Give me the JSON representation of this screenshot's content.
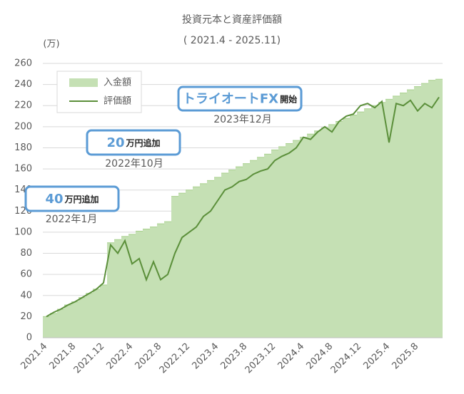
{
  "chart_data": {
    "type": "area-line",
    "title": "投資元本と資産評価額",
    "subtitle": "( 2021.4 - 2025.11)",
    "y_unit": "(万)",
    "categories": [
      "2021.4",
      null,
      null,
      null,
      "2021.8",
      null,
      null,
      null,
      "2021.12",
      null,
      null,
      null,
      "2022.4",
      null,
      null,
      null,
      "2022.8",
      null,
      null,
      null,
      "2022.12",
      null,
      null,
      null,
      "2023.4",
      null,
      null,
      null,
      "2023.8",
      null,
      null,
      null,
      "2023.12",
      null,
      null,
      null,
      "2024.4",
      null,
      null,
      null,
      "2024.8",
      null,
      null,
      null,
      "2024.12",
      null,
      null,
      null,
      "2025.4",
      null,
      null,
      null,
      "2025.8",
      null,
      null,
      null
    ],
    "series": [
      {
        "name": "入金額",
        "color": "#c5e0b4",
        "values": [
          20,
          23,
          27,
          31,
          34,
          38,
          42,
          46,
          50,
          90,
          93,
          96,
          98,
          101,
          103,
          105,
          108,
          110,
          134,
          137,
          140,
          143,
          146,
          149,
          152,
          156,
          159,
          162,
          165,
          168,
          171,
          174,
          178,
          181,
          184,
          187,
          190,
          193,
          196,
          199,
          202,
          205,
          208,
          211,
          214,
          217,
          220,
          223,
          226,
          229,
          232,
          235,
          238,
          241,
          244,
          245
        ]
      },
      {
        "name": "評価額",
        "color": "#5b8f3a",
        "values": [
          20,
          24,
          27,
          31,
          34,
          38,
          42,
          46,
          52,
          88,
          80,
          92,
          70,
          75,
          55,
          72,
          55,
          60,
          80,
          95,
          100,
          105,
          115,
          120,
          130,
          140,
          143,
          148,
          150,
          155,
          158,
          160,
          168,
          172,
          175,
          180,
          190,
          188,
          195,
          200,
          195,
          205,
          210,
          212,
          220,
          222,
          218,
          224,
          185,
          222,
          220,
          225,
          215,
          222,
          218,
          228
        ]
      }
    ],
    "ylim": [
      0,
      260
    ],
    "yticks": [
      0,
      20,
      40,
      60,
      80,
      100,
      120,
      140,
      160,
      180,
      200,
      220,
      240,
      260
    ],
    "grid": true,
    "annotations": [
      {
        "highlight": "40",
        "text": "万円追加",
        "date": "2022年1月"
      },
      {
        "highlight": "20",
        "text": "万円追加",
        "date": "2022年10月"
      },
      {
        "highlight": "トライオートFX",
        "text": "開始",
        "date": "2023年12月"
      }
    ]
  }
}
